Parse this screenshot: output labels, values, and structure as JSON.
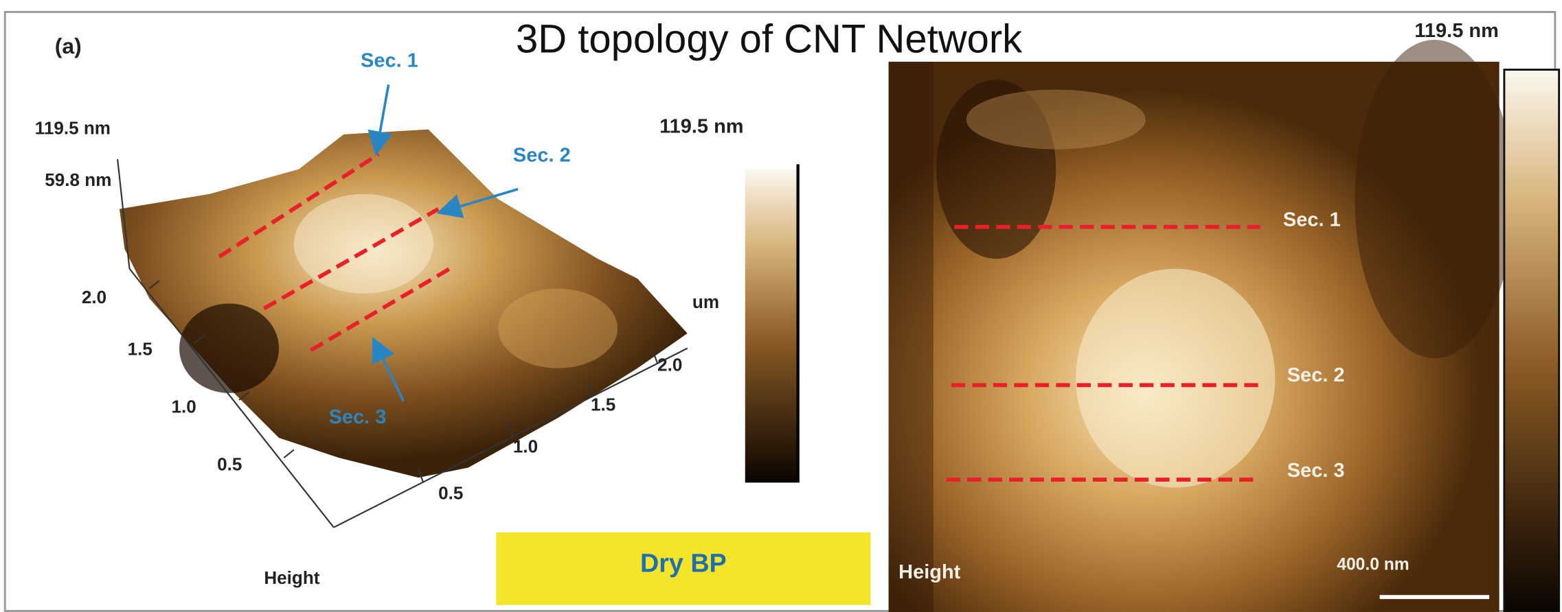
{
  "title": "3D topology of CNT Network",
  "panel_label": "(a)",
  "sample": "Dry BP",
  "left_panel": {
    "z_max": "119.5 nm",
    "z_mid": "59.8 nm",
    "y_ticks": [
      "2.0",
      "1.5",
      "1.0",
      "0.5"
    ],
    "x_ticks": [
      "0.5",
      "1.0",
      "1.5",
      "2.0"
    ],
    "unit": "um",
    "channel": "Height",
    "sections": [
      "Sec. 1",
      "Sec. 2",
      "Sec. 3"
    ],
    "colorbar_max": "119.5 nm"
  },
  "right_panel": {
    "sections": [
      "Sec. 1",
      "Sec. 2",
      "Sec. 3"
    ],
    "channel": "Height",
    "scale_bar": "400.0 nm",
    "colorbar_max": "119.5 nm"
  }
}
